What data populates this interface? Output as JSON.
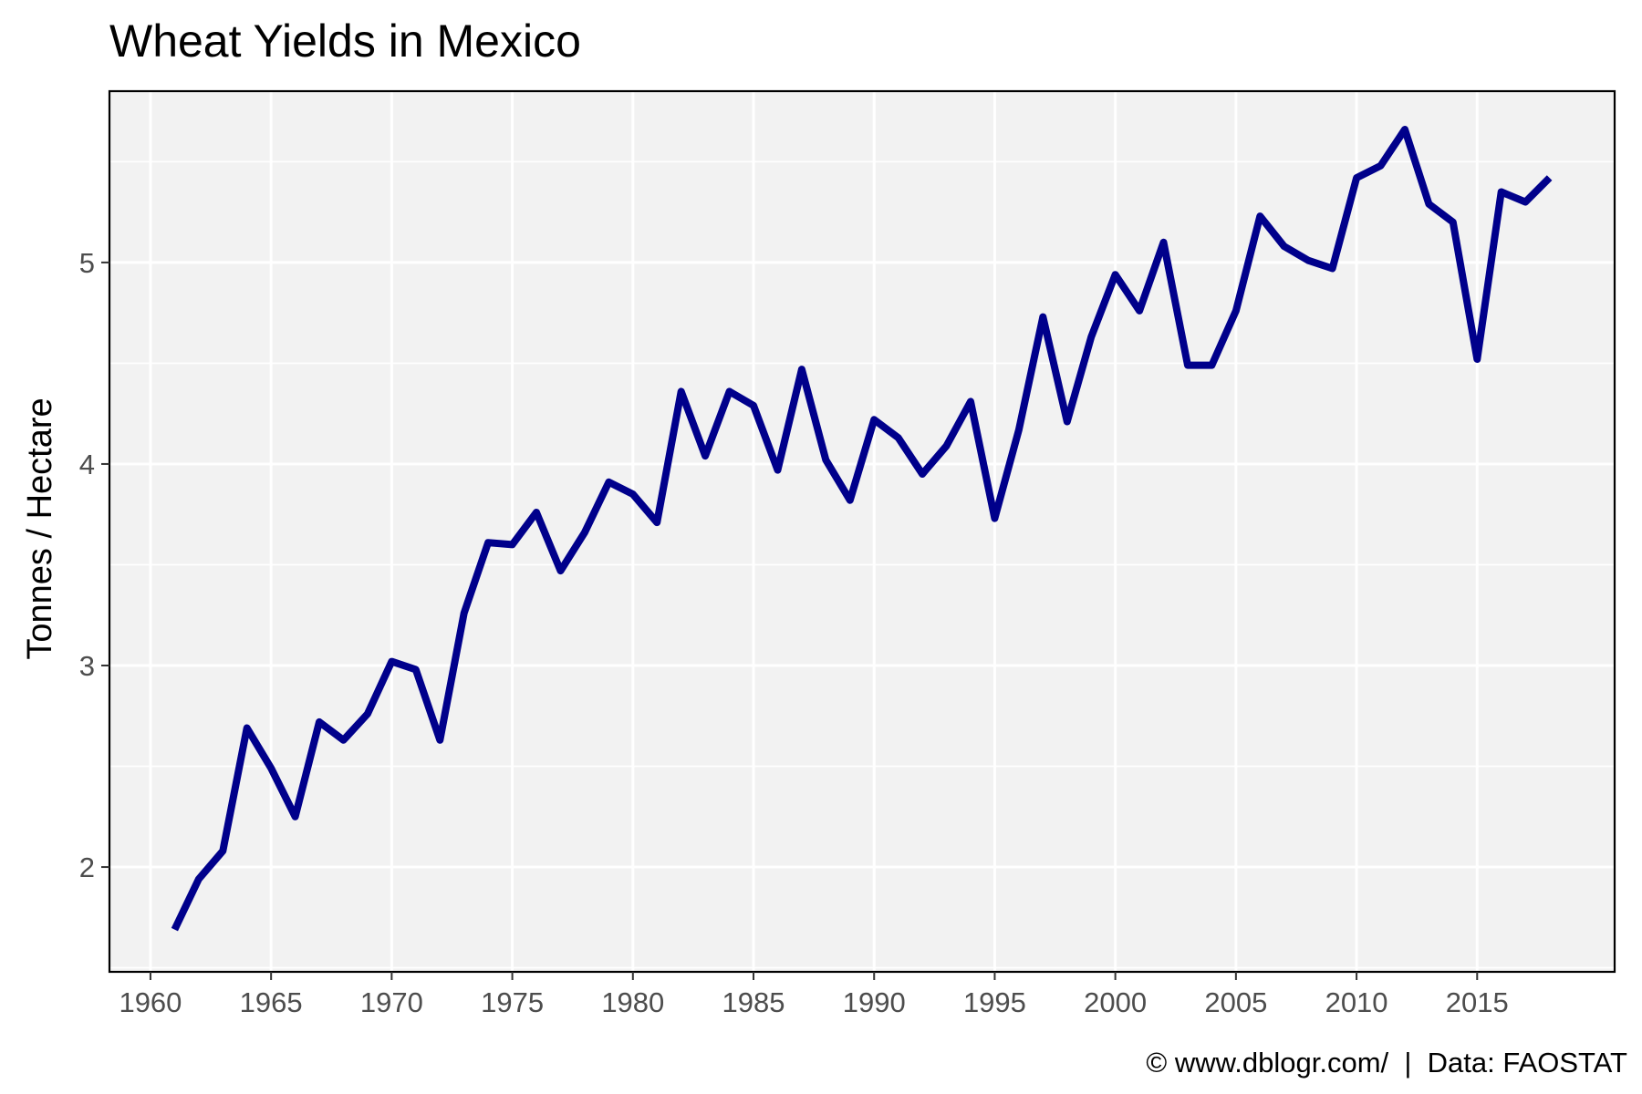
{
  "chart_data": {
    "type": "line",
    "title": "Wheat Yields in Mexico",
    "xlabel": "",
    "ylabel": "Tonnes / Hectare",
    "caption": "© www.dblogr.com/  |  Data: FAOSTAT",
    "xlim": [
      1958.3,
      2020.7
    ],
    "ylim": [
      1.48,
      5.85
    ],
    "x_ticks": [
      1960,
      1965,
      1970,
      1975,
      1980,
      1985,
      1990,
      1995,
      2000,
      2005,
      2010,
      2015
    ],
    "y_ticks": [
      2,
      3,
      4,
      5
    ],
    "grid": true,
    "legend": "none",
    "colors": {
      "line": "#00008b",
      "panel": "#f2f2f2",
      "grid": "#ffffff",
      "border": "#000000"
    },
    "series": [
      {
        "x": [
          1961,
          1962,
          1963,
          1964,
          1965,
          1966,
          1967,
          1968,
          1969,
          1970,
          1971,
          1972,
          1973,
          1974,
          1975,
          1976,
          1977,
          1978,
          1979,
          1980,
          1981,
          1982,
          1983,
          1984,
          1985,
          1986,
          1987,
          1988,
          1989,
          1990,
          1991,
          1992,
          1993,
          1994,
          1995,
          1996,
          1997,
          1998,
          1999,
          2000,
          2001,
          2002,
          2003,
          2004,
          2005,
          2006,
          2007,
          2008,
          2009,
          2010,
          2011,
          2012,
          2013,
          2014,
          2015,
          2016,
          2017,
          2018
        ],
        "values": [
          1.69,
          1.94,
          2.08,
          2.69,
          2.49,
          2.25,
          2.72,
          2.63,
          2.76,
          3.02,
          2.98,
          2.63,
          3.26,
          3.61,
          3.6,
          3.76,
          3.47,
          3.66,
          3.91,
          3.85,
          3.71,
          4.36,
          4.04,
          4.36,
          4.29,
          3.97,
          4.47,
          4.02,
          3.82,
          4.22,
          4.13,
          3.95,
          4.09,
          4.31,
          3.73,
          4.17,
          4.73,
          4.21,
          4.63,
          4.94,
          4.76,
          5.1,
          4.49,
          4.49,
          4.76,
          5.23,
          5.08,
          5.01,
          4.97,
          5.42,
          5.48,
          5.66,
          5.29,
          5.2,
          4.52,
          5.35,
          5.3,
          5.42
        ]
      }
    ]
  }
}
